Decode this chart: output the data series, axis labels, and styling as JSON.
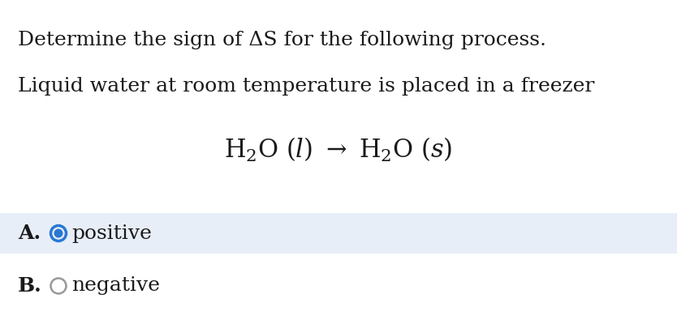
{
  "background_color": "#ffffff",
  "title_line1": "Determine the sign of ΔS for the following process.",
  "title_line2": "Liquid water at room temperature is placed in a freezer",
  "option_A_label": "A.",
  "option_A_text": "positive",
  "option_B_label": "B.",
  "option_B_text": "negative",
  "option_A_bg": "#e8eef8",
  "radio_selected_color": "#2979d4",
  "radio_unselected_edge": "#999999",
  "text_color": "#1a1a1a",
  "font_size_main": 18,
  "font_size_equation": 19,
  "font_size_options": 18,
  "fig_width": 8.34,
  "fig_height": 4.0,
  "dpi": 100
}
